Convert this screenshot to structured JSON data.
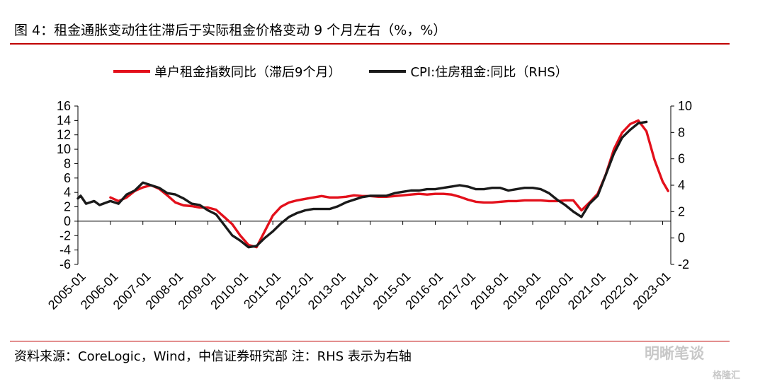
{
  "header": {
    "title": "图 4：租金通胀变动往往滞后于实际租金价格变动 9 个月左右（%，%）"
  },
  "footer": {
    "source": "资料来源：CoreLogic，Wind，中信证券研究部  注：RHS 表示为右轴"
  },
  "watermark": {
    "text": "明晰笔谈",
    "sub": "格隆汇"
  },
  "colors": {
    "accent": "#c00000",
    "series_red": "#e3101b",
    "series_black": "#1a1a1a"
  },
  "chart_data": {
    "type": "line",
    "legend_position": "top",
    "grid": false,
    "x_ticks": [
      "2005-01",
      "2006-01",
      "2007-01",
      "2008-01",
      "2009-01",
      "2010-01",
      "2011-01",
      "2012-01",
      "2013-01",
      "2014-01",
      "2015-01",
      "2016-01",
      "2017-01",
      "2018-01",
      "2019-01",
      "2020-01",
      "2021-01",
      "2022-01",
      "2023-01"
    ],
    "y_left": {
      "ticks": [
        -6,
        -4,
        -2,
        0,
        2,
        4,
        6,
        8,
        10,
        12,
        14,
        16
      ],
      "range": [
        -6,
        16
      ]
    },
    "y_right": {
      "ticks": [
        -2,
        0,
        2,
        4,
        6,
        8,
        10
      ],
      "range": [
        -2,
        10
      ],
      "label": "RHS"
    },
    "series": [
      {
        "name": "单户租金指数同比（滞后9个月）",
        "axis": "left",
        "color": "#e3101b",
        "points": [
          [
            "2006-01",
            3.3
          ],
          [
            "2006-04",
            2.8
          ],
          [
            "2006-07",
            3.3
          ],
          [
            "2006-10",
            4.2
          ],
          [
            "2007-01",
            4.7
          ],
          [
            "2007-04",
            5.0
          ],
          [
            "2007-07",
            4.5
          ],
          [
            "2007-10",
            3.6
          ],
          [
            "2008-01",
            2.6
          ],
          [
            "2008-04",
            2.2
          ],
          [
            "2008-07",
            2.1
          ],
          [
            "2008-10",
            1.9
          ],
          [
            "2009-01",
            1.9
          ],
          [
            "2009-04",
            1.6
          ],
          [
            "2009-07",
            0.6
          ],
          [
            "2009-10",
            -0.4
          ],
          [
            "2010-01",
            -2.0
          ],
          [
            "2010-04",
            -3.3
          ],
          [
            "2010-07",
            -3.6
          ],
          [
            "2010-10",
            -1.4
          ],
          [
            "2011-01",
            0.8
          ],
          [
            "2011-04",
            2.0
          ],
          [
            "2011-07",
            2.6
          ],
          [
            "2011-10",
            2.9
          ],
          [
            "2012-01",
            3.1
          ],
          [
            "2012-04",
            3.3
          ],
          [
            "2012-07",
            3.5
          ],
          [
            "2012-10",
            3.3
          ],
          [
            "2013-01",
            3.3
          ],
          [
            "2013-04",
            3.4
          ],
          [
            "2013-07",
            3.6
          ],
          [
            "2013-10",
            3.5
          ],
          [
            "2014-01",
            3.5
          ],
          [
            "2014-04",
            3.4
          ],
          [
            "2014-07",
            3.4
          ],
          [
            "2014-10",
            3.5
          ],
          [
            "2015-01",
            3.6
          ],
          [
            "2015-04",
            3.7
          ],
          [
            "2015-07",
            3.8
          ],
          [
            "2015-10",
            3.7
          ],
          [
            "2016-01",
            3.8
          ],
          [
            "2016-04",
            3.8
          ],
          [
            "2016-07",
            3.7
          ],
          [
            "2016-10",
            3.4
          ],
          [
            "2017-01",
            3.0
          ],
          [
            "2017-04",
            2.7
          ],
          [
            "2017-07",
            2.6
          ],
          [
            "2017-10",
            2.6
          ],
          [
            "2018-01",
            2.7
          ],
          [
            "2018-04",
            2.8
          ],
          [
            "2018-07",
            2.8
          ],
          [
            "2018-10",
            2.9
          ],
          [
            "2019-01",
            2.9
          ],
          [
            "2019-04",
            2.9
          ],
          [
            "2019-07",
            2.8
          ],
          [
            "2019-10",
            2.8
          ],
          [
            "2020-01",
            2.9
          ],
          [
            "2020-04",
            2.9
          ],
          [
            "2020-07",
            1.5
          ],
          [
            "2020-10",
            2.6
          ],
          [
            "2021-01",
            3.8
          ],
          [
            "2021-04",
            6.5
          ],
          [
            "2021-07",
            10.0
          ],
          [
            "2021-10",
            12.3
          ],
          [
            "2022-01",
            13.5
          ],
          [
            "2022-04",
            14.0
          ],
          [
            "2022-07",
            12.5
          ],
          [
            "2022-10",
            8.5
          ],
          [
            "2023-01",
            5.5
          ],
          [
            "2023-03",
            4.2
          ]
        ]
      },
      {
        "name": "CPI:住房租金:同比（RHS）",
        "axis": "right",
        "color": "#1a1a1a",
        "points": [
          [
            "2005-01",
            3.0
          ],
          [
            "2005-02",
            3.2
          ],
          [
            "2005-04",
            2.6
          ],
          [
            "2005-07",
            2.8
          ],
          [
            "2005-09",
            2.5
          ],
          [
            "2006-01",
            2.8
          ],
          [
            "2006-04",
            2.6
          ],
          [
            "2006-07",
            3.3
          ],
          [
            "2006-10",
            3.6
          ],
          [
            "2007-01",
            4.2
          ],
          [
            "2007-04",
            4.0
          ],
          [
            "2007-07",
            3.8
          ],
          [
            "2007-10",
            3.4
          ],
          [
            "2008-01",
            3.3
          ],
          [
            "2008-04",
            3.0
          ],
          [
            "2008-07",
            2.6
          ],
          [
            "2008-10",
            2.5
          ],
          [
            "2009-01",
            2.1
          ],
          [
            "2009-04",
            1.8
          ],
          [
            "2009-07",
            1.0
          ],
          [
            "2009-10",
            0.2
          ],
          [
            "2010-01",
            -0.2
          ],
          [
            "2010-04",
            -0.7
          ],
          [
            "2010-07",
            -0.6
          ],
          [
            "2010-10",
            0.0
          ],
          [
            "2011-01",
            0.5
          ],
          [
            "2011-04",
            1.1
          ],
          [
            "2011-07",
            1.6
          ],
          [
            "2011-10",
            1.9
          ],
          [
            "2012-01",
            2.1
          ],
          [
            "2012-04",
            2.2
          ],
          [
            "2012-07",
            2.2
          ],
          [
            "2012-10",
            2.2
          ],
          [
            "2013-01",
            2.4
          ],
          [
            "2013-04",
            2.7
          ],
          [
            "2013-07",
            2.9
          ],
          [
            "2013-10",
            3.1
          ],
          [
            "2014-01",
            3.2
          ],
          [
            "2014-04",
            3.2
          ],
          [
            "2014-07",
            3.2
          ],
          [
            "2014-10",
            3.4
          ],
          [
            "2015-01",
            3.5
          ],
          [
            "2015-04",
            3.6
          ],
          [
            "2015-07",
            3.6
          ],
          [
            "2015-10",
            3.7
          ],
          [
            "2016-01",
            3.7
          ],
          [
            "2016-04",
            3.8
          ],
          [
            "2016-07",
            3.9
          ],
          [
            "2016-10",
            4.0
          ],
          [
            "2017-01",
            3.9
          ],
          [
            "2017-04",
            3.7
          ],
          [
            "2017-07",
            3.7
          ],
          [
            "2017-10",
            3.8
          ],
          [
            "2018-01",
            3.8
          ],
          [
            "2018-04",
            3.6
          ],
          [
            "2018-07",
            3.7
          ],
          [
            "2018-10",
            3.8
          ],
          [
            "2019-01",
            3.8
          ],
          [
            "2019-04",
            3.7
          ],
          [
            "2019-07",
            3.4
          ],
          [
            "2019-10",
            2.9
          ],
          [
            "2020-01",
            2.5
          ],
          [
            "2020-04",
            2.0
          ],
          [
            "2020-07",
            1.6
          ],
          [
            "2020-10",
            2.6
          ],
          [
            "2021-01",
            3.2
          ],
          [
            "2021-04",
            4.8
          ],
          [
            "2021-07",
            6.4
          ],
          [
            "2021-10",
            7.6
          ],
          [
            "2022-01",
            8.2
          ],
          [
            "2022-04",
            8.7
          ],
          [
            "2022-07",
            8.8
          ]
        ]
      }
    ]
  }
}
